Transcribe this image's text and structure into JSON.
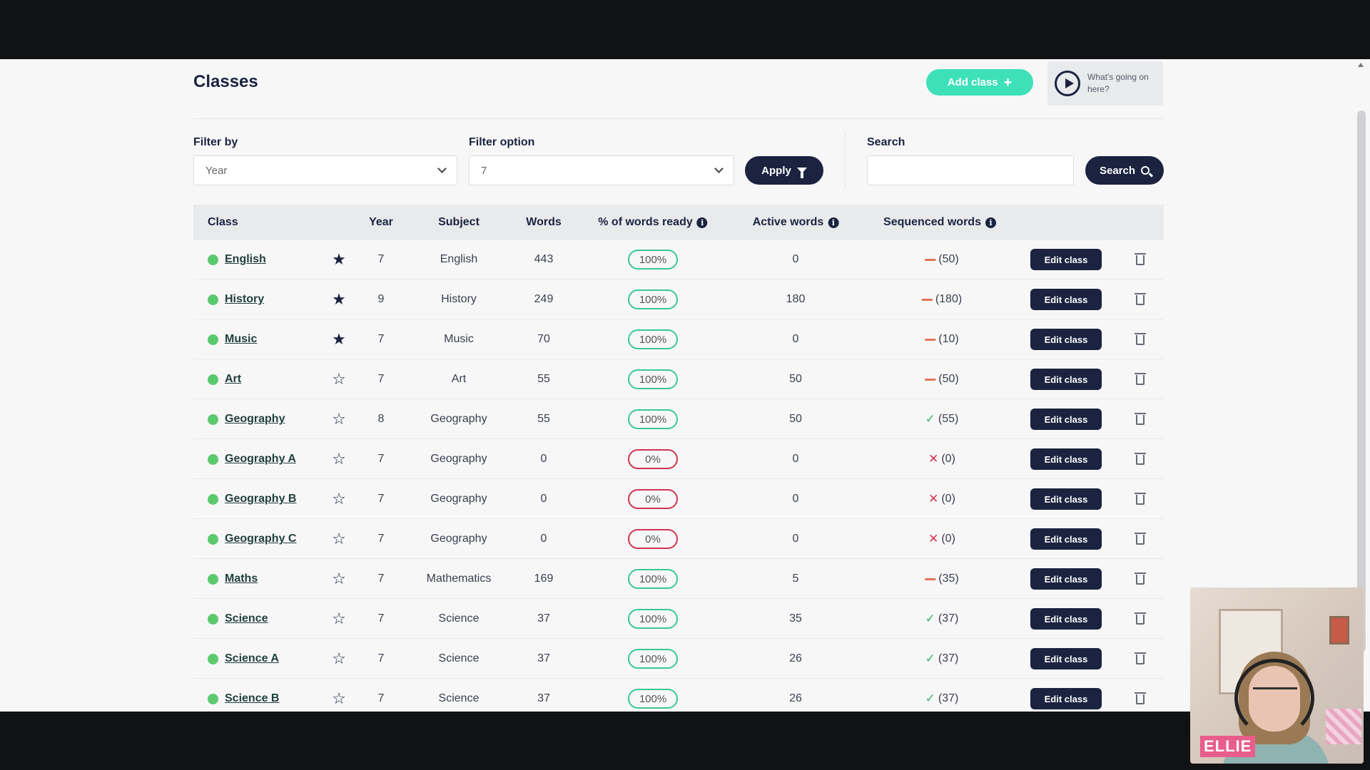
{
  "page": {
    "title": "Classes",
    "add_class_label": "Add class",
    "whats_going_on_label": "What's going on here?"
  },
  "filters": {
    "filter_by_label": "Filter by",
    "filter_by_value": "Year",
    "filter_option_label": "Filter option",
    "filter_option_value": "7",
    "apply_label": "Apply",
    "search_label": "Search",
    "search_value": "",
    "search_button_label": "Search"
  },
  "table": {
    "headers": {
      "class": "Class",
      "year": "Year",
      "subject": "Subject",
      "words": "Words",
      "percent_ready": "% of words ready",
      "active_words": "Active words",
      "sequenced_words": "Sequenced words"
    },
    "edit_label": "Edit class",
    "rows": [
      {
        "name": "English",
        "favorite": true,
        "year": "7",
        "subject": "English",
        "words": "443",
        "ready": "100%",
        "active": "0",
        "seq_status": "partial",
        "seq": "(50)"
      },
      {
        "name": "History",
        "favorite": true,
        "year": "9",
        "subject": "History",
        "words": "249",
        "ready": "100%",
        "active": "180",
        "seq_status": "partial",
        "seq": "(180)"
      },
      {
        "name": "Music",
        "favorite": true,
        "year": "7",
        "subject": "Music",
        "words": "70",
        "ready": "100%",
        "active": "0",
        "seq_status": "partial",
        "seq": "(10)"
      },
      {
        "name": "Art",
        "favorite": false,
        "year": "7",
        "subject": "Art",
        "words": "55",
        "ready": "100%",
        "active": "50",
        "seq_status": "partial",
        "seq": "(50)"
      },
      {
        "name": "Geography",
        "favorite": false,
        "year": "8",
        "subject": "Geography",
        "words": "55",
        "ready": "100%",
        "active": "50",
        "seq_status": "complete",
        "seq": "(55)"
      },
      {
        "name": "Geography A",
        "favorite": false,
        "year": "7",
        "subject": "Geography",
        "words": "0",
        "ready": "0%",
        "active": "0",
        "seq_status": "none",
        "seq": "(0)"
      },
      {
        "name": "Geography B",
        "favorite": false,
        "year": "7",
        "subject": "Geography",
        "words": "0",
        "ready": "0%",
        "active": "0",
        "seq_status": "none",
        "seq": "(0)"
      },
      {
        "name": "Geography C",
        "favorite": false,
        "year": "7",
        "subject": "Geography",
        "words": "0",
        "ready": "0%",
        "active": "0",
        "seq_status": "none",
        "seq": "(0)"
      },
      {
        "name": "Maths",
        "favorite": false,
        "year": "7",
        "subject": "Mathematics",
        "words": "169",
        "ready": "100%",
        "active": "5",
        "seq_status": "partial",
        "seq": "(35)"
      },
      {
        "name": "Science",
        "favorite": false,
        "year": "7",
        "subject": "Science",
        "words": "37",
        "ready": "100%",
        "active": "35",
        "seq_status": "complete",
        "seq": "(37)"
      },
      {
        "name": "Science A",
        "favorite": false,
        "year": "7",
        "subject": "Science",
        "words": "37",
        "ready": "100%",
        "active": "26",
        "seq_status": "complete",
        "seq": "(37)"
      },
      {
        "name": "Science B",
        "favorite": false,
        "year": "7",
        "subject": "Science",
        "words": "37",
        "ready": "100%",
        "active": "26",
        "seq_status": "complete",
        "seq": "(37)"
      }
    ]
  },
  "webcam": {
    "name_label": "ELLIE"
  },
  "colors": {
    "primary": "#1b2340",
    "accent": "#3ee0b8",
    "ready_border": "#39c98f",
    "zero_border": "#d1344e",
    "status_dot": "#5cc96f"
  }
}
